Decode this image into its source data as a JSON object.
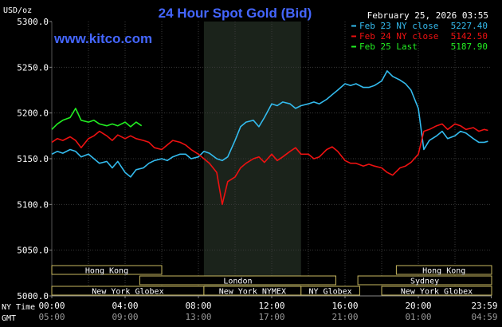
{
  "chart_data": {
    "type": "line",
    "title": "24 Hour Spot Gold (Bid)",
    "timestamp": "February 25, 2026 03:55",
    "watermark": "www.kitco.com",
    "y_unit_label": "USD/oz",
    "ylim": [
      5000,
      5300
    ],
    "y_ticks": [
      "5300.0",
      "5250.0",
      "5200.0",
      "5150.0",
      "5100.0",
      "5050.0",
      "5000.0"
    ],
    "x_tick_labels": [
      "00:00",
      "04:00",
      "08:00",
      "12:00",
      "16:00",
      "20:00",
      "23:59"
    ],
    "gmt_tick_labels": [
      "05:00",
      "09:00",
      "13:00",
      "17:00",
      "21:00",
      "01:00",
      "04:59"
    ],
    "x_axis_rows": [
      "NY Time",
      "GMT"
    ],
    "grid": true,
    "legend_position": "top-right",
    "highlight_band": [
      8.3,
      13.6
    ],
    "colors": {
      "feb23": "#33bbee",
      "feb24": "#ee1111",
      "feb25": "#22ee22",
      "text": "#ffffff",
      "title": "#4466ff",
      "grid": "#3a3a3a",
      "band": "#1b231b"
    },
    "series": [
      {
        "name": "Feb 23 NY close",
        "value": "5227.40",
        "color": "#33bbee",
        "points": [
          [
            0,
            5155
          ],
          [
            0.3,
            5158
          ],
          [
            0.6,
            5156
          ],
          [
            1,
            5160
          ],
          [
            1.3,
            5158
          ],
          [
            1.6,
            5152
          ],
          [
            2,
            5155
          ],
          [
            2.3,
            5150
          ],
          [
            2.6,
            5145
          ],
          [
            3,
            5147
          ],
          [
            3.3,
            5140
          ],
          [
            3.6,
            5147
          ],
          [
            4,
            5135
          ],
          [
            4.3,
            5130
          ],
          [
            4.6,
            5138
          ],
          [
            5,
            5140
          ],
          [
            5.3,
            5145
          ],
          [
            5.6,
            5148
          ],
          [
            6,
            5150
          ],
          [
            6.3,
            5148
          ],
          [
            6.6,
            5152
          ],
          [
            7,
            5155
          ],
          [
            7.3,
            5155
          ],
          [
            7.6,
            5150
          ],
          [
            8,
            5152
          ],
          [
            8.3,
            5158
          ],
          [
            8.6,
            5156
          ],
          [
            9,
            5150
          ],
          [
            9.3,
            5148
          ],
          [
            9.6,
            5152
          ],
          [
            10,
            5170
          ],
          [
            10.3,
            5185
          ],
          [
            10.6,
            5190
          ],
          [
            11,
            5192
          ],
          [
            11.3,
            5185
          ],
          [
            11.6,
            5195
          ],
          [
            12,
            5210
          ],
          [
            12.3,
            5208
          ],
          [
            12.6,
            5212
          ],
          [
            13,
            5210
          ],
          [
            13.3,
            5205
          ],
          [
            13.6,
            5208
          ],
          [
            14,
            5210
          ],
          [
            14.3,
            5212
          ],
          [
            14.6,
            5210
          ],
          [
            15,
            5215
          ],
          [
            15.3,
            5220
          ],
          [
            15.6,
            5225
          ],
          [
            16,
            5232
          ],
          [
            16.3,
            5230
          ],
          [
            16.6,
            5232
          ],
          [
            17,
            5228
          ],
          [
            17.3,
            5228
          ],
          [
            17.6,
            5230
          ],
          [
            18,
            5235
          ],
          [
            18.3,
            5246
          ],
          [
            18.6,
            5240
          ],
          [
            19,
            5236
          ],
          [
            19.3,
            5232
          ],
          [
            19.6,
            5225
          ],
          [
            20,
            5205
          ],
          [
            20.3,
            5160
          ],
          [
            20.6,
            5170
          ],
          [
            21,
            5175
          ],
          [
            21.3,
            5180
          ],
          [
            21.6,
            5172
          ],
          [
            22,
            5175
          ],
          [
            22.3,
            5180
          ],
          [
            22.6,
            5178
          ],
          [
            23,
            5172
          ],
          [
            23.3,
            5168
          ],
          [
            23.6,
            5168
          ],
          [
            23.8,
            5169
          ]
        ]
      },
      {
        "name": "Feb 24 NY close",
        "value": "5142.50",
        "color": "#ee1111",
        "points": [
          [
            0,
            5168
          ],
          [
            0.3,
            5172
          ],
          [
            0.6,
            5170
          ],
          [
            1,
            5174
          ],
          [
            1.3,
            5170
          ],
          [
            1.6,
            5162
          ],
          [
            2,
            5172
          ],
          [
            2.3,
            5175
          ],
          [
            2.6,
            5180
          ],
          [
            3,
            5175
          ],
          [
            3.3,
            5170
          ],
          [
            3.6,
            5176
          ],
          [
            4,
            5172
          ],
          [
            4.3,
            5175
          ],
          [
            4.6,
            5172
          ],
          [
            5,
            5170
          ],
          [
            5.3,
            5168
          ],
          [
            5.6,
            5162
          ],
          [
            6,
            5160
          ],
          [
            6.3,
            5165
          ],
          [
            6.6,
            5170
          ],
          [
            7,
            5168
          ],
          [
            7.3,
            5165
          ],
          [
            7.6,
            5160
          ],
          [
            8,
            5155
          ],
          [
            8.3,
            5150
          ],
          [
            8.6,
            5145
          ],
          [
            9,
            5135
          ],
          [
            9.3,
            5100
          ],
          [
            9.6,
            5125
          ],
          [
            10,
            5130
          ],
          [
            10.3,
            5140
          ],
          [
            10.6,
            5145
          ],
          [
            11,
            5150
          ],
          [
            11.3,
            5152
          ],
          [
            11.6,
            5146
          ],
          [
            12,
            5155
          ],
          [
            12.3,
            5148
          ],
          [
            12.6,
            5152
          ],
          [
            13,
            5158
          ],
          [
            13.3,
            5162
          ],
          [
            13.6,
            5155
          ],
          [
            14,
            5155
          ],
          [
            14.3,
            5150
          ],
          [
            14.6,
            5152
          ],
          [
            15,
            5160
          ],
          [
            15.3,
            5163
          ],
          [
            15.6,
            5158
          ],
          [
            16,
            5148
          ],
          [
            16.3,
            5145
          ],
          [
            16.6,
            5145
          ],
          [
            17,
            5142
          ],
          [
            17.3,
            5144
          ],
          [
            17.6,
            5142
          ],
          [
            18,
            5140
          ],
          [
            18.3,
            5135
          ],
          [
            18.6,
            5132
          ],
          [
            19,
            5140
          ],
          [
            19.3,
            5142
          ],
          [
            19.6,
            5146
          ],
          [
            20,
            5155
          ],
          [
            20.3,
            5180
          ],
          [
            20.6,
            5182
          ],
          [
            21,
            5186
          ],
          [
            21.3,
            5188
          ],
          [
            21.6,
            5182
          ],
          [
            22,
            5188
          ],
          [
            22.3,
            5186
          ],
          [
            22.6,
            5182
          ],
          [
            23,
            5184
          ],
          [
            23.3,
            5180
          ],
          [
            23.6,
            5182
          ],
          [
            23.8,
            5181
          ]
        ]
      },
      {
        "name": "Feb 25 Last",
        "value": "5187.90",
        "color": "#22ee22",
        "points": [
          [
            0,
            5182
          ],
          [
            0.3,
            5188
          ],
          [
            0.6,
            5192
          ],
          [
            1,
            5195
          ],
          [
            1.3,
            5205
          ],
          [
            1.6,
            5192
          ],
          [
            2,
            5190
          ],
          [
            2.3,
            5192
          ],
          [
            2.6,
            5188
          ],
          [
            3,
            5186
          ],
          [
            3.3,
            5188
          ],
          [
            3.6,
            5186
          ],
          [
            4,
            5190
          ],
          [
            4.3,
            5185
          ],
          [
            4.6,
            5190
          ],
          [
            4.9,
            5186
          ]
        ]
      }
    ],
    "sessions": [
      {
        "label": "Hong Kong",
        "start": 0,
        "end": 6,
        "row": 0
      },
      {
        "label": "London",
        "start": 4.8,
        "end": 15.5,
        "row": 1
      },
      {
        "label": "New York Globex",
        "start": 0,
        "end": 8.3,
        "row": 2
      },
      {
        "label": "New York NYMEX",
        "start": 8.3,
        "end": 13.6,
        "row": 2
      },
      {
        "label": "NY Globex",
        "start": 13.6,
        "end": 16.8,
        "row": 2
      },
      {
        "label": "Hong Kong",
        "start": 18.8,
        "end": 24,
        "row": 0
      },
      {
        "label": "Sydney",
        "start": 16.7,
        "end": 24,
        "row": 1
      },
      {
        "label": "New York Globex",
        "start": 18,
        "end": 24,
        "row": 2
      }
    ]
  }
}
